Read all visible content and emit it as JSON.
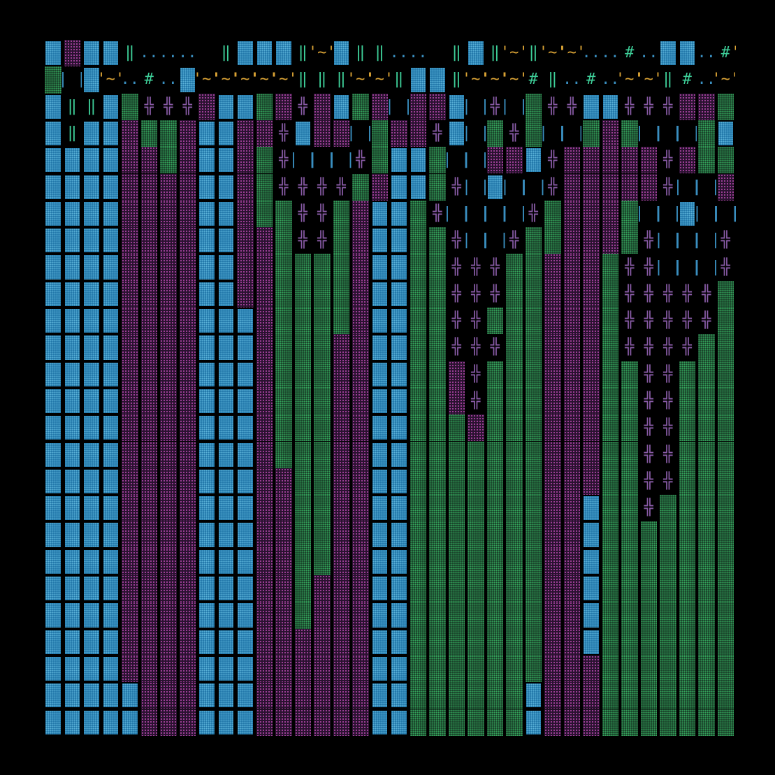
{
  "legend": {
    "B": {
      "kind": "block-blue"
    },
    "P": {
      "kind": "dots-purple"
    },
    "G": {
      "kind": "dots-green"
    },
    "+": {
      "kind": "glyph",
      "glyph": "╬",
      "color": "#8a5ca8",
      "name": "double-cross-glyph"
    },
    "|": {
      "kind": "glyph",
      "glyph": "| |",
      "color": "#3a8fc0",
      "name": "double-bar-glyph"
    },
    "D": {
      "kind": "glyph",
      "glyph": "‖",
      "color": "#3ecf99",
      "name": "double-pipe-glyph"
    },
    "#": {
      "kind": "glyph",
      "glyph": "#",
      "color": "#3ecf99",
      "name": "hash-glyph"
    },
    "o": {
      "kind": "glyph",
      "glyph": "..",
      "color": "#3a8fc0",
      "name": "dots-glyph"
    },
    "~": {
      "kind": "glyph",
      "glyph": "'~'",
      "color": "#d9a235",
      "name": "tilde-glyph"
    },
    "'": {
      "kind": "glyph",
      "glyph": "'",
      "color": "#d9a235",
      "name": "quote-glyph"
    },
    " ": {
      "kind": "empty"
    }
  },
  "rows": [
    "BPBBDooo DBBBD~BDDoo DBD~D~~oo#oBBo#~##o#",
    "G|B~o#oB~~~~~DDD~~DBBD~~~#Do#o~~D#o~B#~",
    "BDDBG+++PBBGP+PBGP|PPB|+|G++BB+++PPGBBB",
    "BDBBPGGPBBPP+BPP|GPP+B|G+G||GPG|||GBBB",
    "BBBBPPGPBBPG+|||+GBBG||PPB+PPPPP+PGGBB",
    "BBBBPPPPBBPG++++GPBBG+|B||+PPPPP+||PG|",
    "BBBBPPPPBBPGG++GPBBG+||||+GPPPG||B|||",
    "BBBBPPPPBBPPG++GPBBGG+||+GGPPPG+|||+G",
    "BBBBPPPPBBPPGGGGPBBGG+++GGPPPG++|||+G",
    "BBBBPPPPBBPPGGGGPBBGG+++GGPPPG+++++G",
    "BBBBPPPPBBBPGGGGPBBGG++GGGPPPG+++++G",
    "BBBBPPPPBBBPGGGPPBBGG+++GGPPPG++++GG",
    "BBBBPPPPBBBPGGGPPBBGGP+GGGPPPGG++GGG",
    "BBBBPPPPBBBPGGGPPBBGGP+GGGPPPGG++GGG",
    "BBBBPPPPBBBPGGGPPBBGGGPGGGPPPGG++GGG",
    "BBBBPPPPBBBPGGGPPBBGGGGGGGPPPGG++GGG",
    "BBBBPPPPBBBPPGGPPBBGGGGGGGPPPGG++GGG",
    "BBBBPPPPBBBPPGGPPBBGGGGGGGPPBGG+GGGG",
    "BBBBPPPPBBBPPGGPPBBGGGGGGGPPBGGGGGGG",
    "BBBBPPPPBBBPPGGPPBBGGGGGGGPPBGGGGGGG",
    "BBBBPPPPBBBPPGPPPBBGGGGGGGPPBGGGGGGG",
    "BBBBPPPPBBBPPGPPPBBGGGGGGGPPBGGGGGGG",
    "BBBBPPPPBBBPPPPPPBBGGGGGGGPPBGGGGGGG",
    "BBBBPPPPBBBPPPPPPBBGGGGGGGPPPGGGGGGG",
    "BBBBBPPPBBBPPPPPPBBGGGGGGBPPPGGGGGGG",
    "BBBBBPPPBBBPPPPPPBBGGGGGGBPPPGGGGGGG",
    "BBBBBPPPBBBPPPPPPBBGGGGGGBPPPGGGGGGG"
  ]
}
